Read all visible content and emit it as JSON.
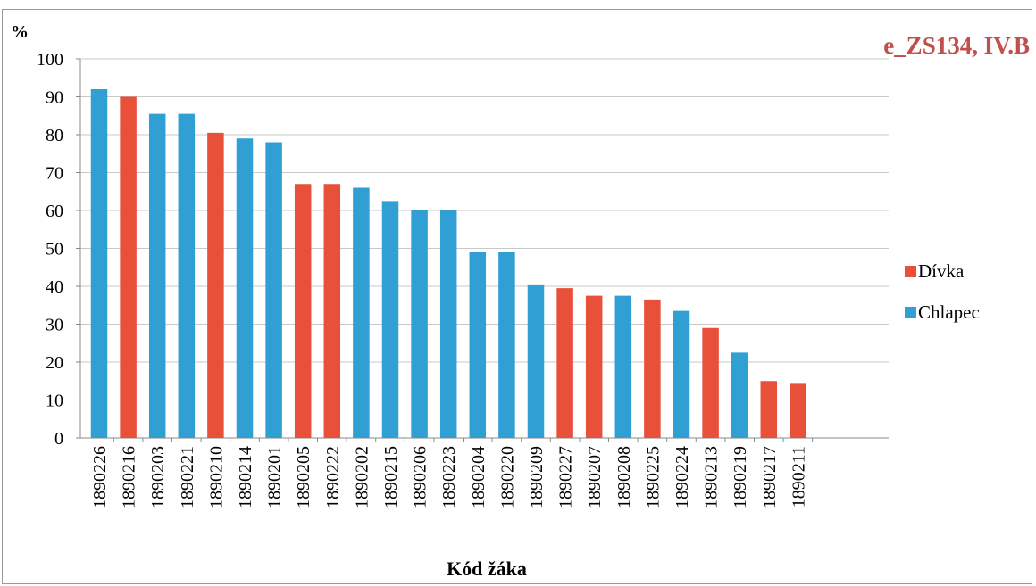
{
  "chart_data": {
    "type": "bar",
    "title": "e_ZS134, IV.B",
    "xlabel": "Kód žáka",
    "ylabel": "%",
    "ylim": [
      0,
      100
    ],
    "yticks": [
      0,
      10,
      20,
      30,
      40,
      50,
      60,
      70,
      80,
      90,
      100
    ],
    "grid": true,
    "legend_position": "right",
    "categories": [
      "1890226",
      "1890216",
      "1890203",
      "1890221",
      "1890210",
      "1890214",
      "1890201",
      "1890205",
      "1890222",
      "1890202",
      "1890215",
      "1890206",
      "1890223",
      "1890204",
      "1890220",
      "1890209",
      "1890227",
      "1890207",
      "1890208",
      "1890225",
      "1890224",
      "1890213",
      "1890219",
      "1890217",
      "1890211"
    ],
    "values": [
      92,
      90,
      85.5,
      85.5,
      80.5,
      79,
      78,
      67,
      67,
      66,
      62.5,
      60,
      60,
      49,
      49,
      40.5,
      39.5,
      37.5,
      37.5,
      36.5,
      33.5,
      29,
      22.5,
      15,
      14.5
    ],
    "groups": [
      "Chlapec",
      "Dívka",
      "Chlapec",
      "Chlapec",
      "Dívka",
      "Chlapec",
      "Chlapec",
      "Dívka",
      "Dívka",
      "Chlapec",
      "Chlapec",
      "Chlapec",
      "Chlapec",
      "Chlapec",
      "Chlapec",
      "Chlapec",
      "Dívka",
      "Dívka",
      "Chlapec",
      "Dívka",
      "Chlapec",
      "Dívka",
      "Chlapec",
      "Dívka",
      "Dívka"
    ],
    "series": [
      {
        "name": "Dívka",
        "color": "#e8503a"
      },
      {
        "name": "Chlapec",
        "color": "#2f9fd4"
      }
    ],
    "title_color": "#c0504d"
  }
}
